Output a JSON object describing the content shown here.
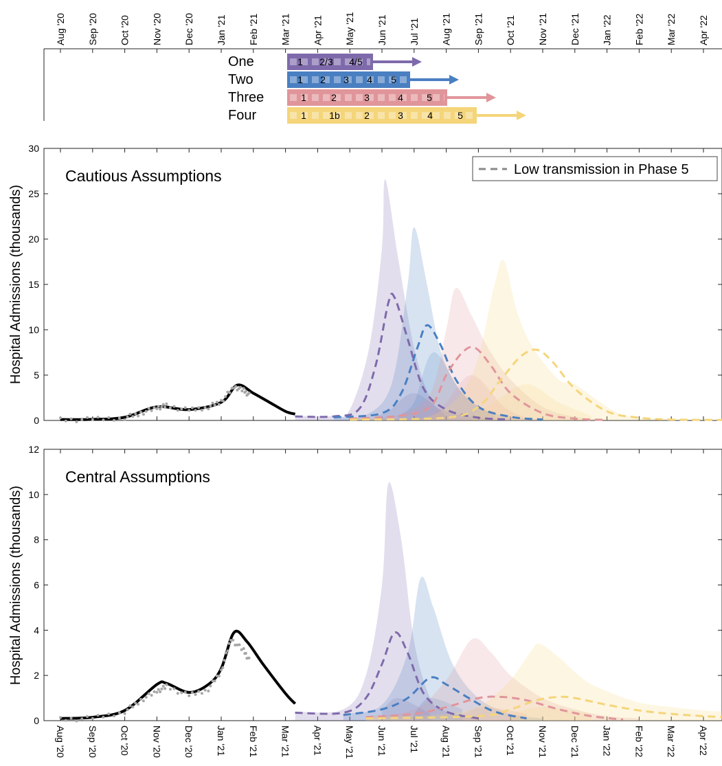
{
  "months": [
    "Aug '20",
    "Sep '20",
    "Oct '20",
    "Nov '20",
    "Dec '20",
    "Jan '21",
    "Feb '21",
    "Mar '21",
    "Apr '21",
    "May '21",
    "Jun '21",
    "Jul '21",
    "Aug '21",
    "Sep '21",
    "Oct '21",
    "Nov '21",
    "Dec '21",
    "Jan '22",
    "Feb '22",
    "Mar '22",
    "Apr '22"
  ],
  "colors": {
    "One": "#7e6aab",
    "Two": "#4a7fc1",
    "Three": "#e0959a",
    "Four": "#f5d57a",
    "data": "#000000",
    "observed": "#a6a6a6"
  },
  "roadmap": {
    "scenarios": [
      {
        "name": "One",
        "steps": [
          "1",
          "2/3",
          "4/5"
        ]
      },
      {
        "name": "Two",
        "steps": [
          "1",
          "2",
          "3",
          "4",
          "5"
        ]
      },
      {
        "name": "Three",
        "steps": [
          "1",
          "2",
          "3",
          "4",
          "5"
        ]
      },
      {
        "name": "Four",
        "steps": [
          "1",
          "1b",
          "2",
          "3",
          "4",
          "5"
        ]
      }
    ]
  },
  "chart_data": [
    {
      "type": "area",
      "title": "Cautious Assumptions",
      "ylabel": "Hospital Admissions (thousands)",
      "ylim": [
        0,
        30
      ],
      "yticks": [
        0,
        5,
        10,
        15,
        20,
        25,
        30
      ],
      "legend": {
        "label": "Low transmission in Phase 5",
        "position": "top-right"
      },
      "x_unit": "month index from Aug '20",
      "fitted": [
        [
          0,
          0.1
        ],
        [
          1,
          0.12
        ],
        [
          2,
          0.35
        ],
        [
          3,
          1.5
        ],
        [
          4,
          1.2
        ],
        [
          5,
          2.0
        ],
        [
          5.5,
          3.9
        ],
        [
          6,
          3.0
        ],
        [
          6.5,
          2.0
        ],
        [
          7,
          1.0
        ],
        [
          7.3,
          0.7
        ]
      ],
      "observed": [
        [
          0,
          0.05
        ],
        [
          1,
          0.1
        ],
        [
          2,
          0.3
        ],
        [
          2.5,
          0.8
        ],
        [
          3,
          1.4
        ],
        [
          3.3,
          1.6
        ],
        [
          4,
          1.1
        ],
        [
          4.6,
          1.5
        ],
        [
          5,
          2.1
        ],
        [
          5.4,
          3.7
        ],
        [
          5.7,
          3.3
        ],
        [
          5.9,
          2.7
        ]
      ],
      "scenarios": [
        {
          "name": "One",
          "upper": [
            [
              7.3,
              0.5
            ],
            [
              8.5,
              0.5
            ],
            [
              9,
              1.2
            ],
            [
              9.6,
              8
            ],
            [
              10,
              19
            ],
            [
              10.1,
              26.6
            ],
            [
              10.5,
              18
            ],
            [
              11,
              8
            ],
            [
              11.5,
              2.5
            ],
            [
              12,
              1
            ],
            [
              13,
              0.3
            ],
            [
              14,
              0.1
            ]
          ],
          "central": [
            [
              7.3,
              0.45
            ],
            [
              8.5,
              0.45
            ],
            [
              9.3,
              1.3
            ],
            [
              9.8,
              6
            ],
            [
              10.2,
              13
            ],
            [
              10.4,
              13.5
            ],
            [
              10.8,
              9
            ],
            [
              11.3,
              3.5
            ],
            [
              12,
              1.2
            ],
            [
              13,
              0.3
            ],
            [
              14,
              0.1
            ]
          ],
          "lower": [
            [
              9.8,
              0.5
            ],
            [
              10.2,
              1
            ],
            [
              11,
              3
            ],
            [
              12,
              0.5
            ]
          ]
        },
        {
          "name": "Two",
          "upper": [
            [
              8.5,
              0.4
            ],
            [
              9.5,
              0.6
            ],
            [
              10.3,
              4
            ],
            [
              10.8,
              15
            ],
            [
              11,
              21.3
            ],
            [
              11.4,
              15
            ],
            [
              11.8,
              8
            ],
            [
              12.3,
              4
            ],
            [
              13,
              1.5
            ],
            [
              14,
              0.4
            ],
            [
              15,
              0.1
            ]
          ],
          "central": [
            [
              8.5,
              0.35
            ],
            [
              10,
              0.8
            ],
            [
              10.6,
              3
            ],
            [
              11.1,
              8
            ],
            [
              11.4,
              10.5
            ],
            [
              11.8,
              8.5
            ],
            [
              12.3,
              4.5
            ],
            [
              13,
              1.5
            ],
            [
              14,
              0.4
            ],
            [
              15,
              0.1
            ]
          ],
          "lower": [
            [
              10.5,
              0.5
            ],
            [
              11,
              2
            ],
            [
              11.6,
              7.5
            ],
            [
              12.5,
              3
            ],
            [
              13.5,
              0.5
            ]
          ]
        },
        {
          "name": "Three",
          "upper": [
            [
              9,
              0.3
            ],
            [
              10.5,
              0.6
            ],
            [
              11.5,
              3
            ],
            [
              12,
              10
            ],
            [
              12.3,
              14.6
            ],
            [
              12.8,
              11.5
            ],
            [
              13.3,
              8
            ],
            [
              14,
              4.5
            ],
            [
              15,
              1.5
            ],
            [
              16,
              0.4
            ],
            [
              17,
              0.1
            ]
          ],
          "central": [
            [
              9,
              0.2
            ],
            [
              10.5,
              0.5
            ],
            [
              11.5,
              1.5
            ],
            [
              12,
              5
            ],
            [
              12.5,
              7.5
            ],
            [
              12.9,
              8
            ],
            [
              13.4,
              6
            ],
            [
              14,
              3
            ],
            [
              15,
              0.8
            ],
            [
              16,
              0.2
            ],
            [
              17,
              0.05
            ]
          ],
          "lower": [
            [
              11.5,
              0.5
            ],
            [
              12,
              2
            ],
            [
              12.8,
              5
            ],
            [
              13.8,
              1.5
            ],
            [
              14.5,
              0.3
            ]
          ]
        },
        {
          "name": "Four",
          "upper": [
            [
              9,
              0.2
            ],
            [
              11.5,
              0.5
            ],
            [
              12.8,
              5
            ],
            [
              13.5,
              15
            ],
            [
              13.8,
              17.6
            ],
            [
              14.2,
              12
            ],
            [
              14.7,
              8
            ],
            [
              15.5,
              4.5
            ],
            [
              16,
              4
            ],
            [
              16.8,
              2
            ],
            [
              17.5,
              0.6
            ],
            [
              18.5,
              0.2
            ],
            [
              20.7,
              0.1
            ]
          ],
          "central": [
            [
              9,
              0.1
            ],
            [
              12,
              0.3
            ],
            [
              13,
              1.5
            ],
            [
              13.7,
              4.5
            ],
            [
              14.3,
              7
            ],
            [
              14.8,
              7.8
            ],
            [
              15.3,
              6.5
            ],
            [
              16,
              3.5
            ],
            [
              17,
              1
            ],
            [
              18,
              0.3
            ],
            [
              19,
              0.1
            ],
            [
              20.7,
              0.05
            ]
          ],
          "lower": [
            [
              12.8,
              0.5
            ],
            [
              13.5,
              2
            ],
            [
              14.5,
              4
            ],
            [
              15.5,
              2
            ],
            [
              16.5,
              0.5
            ]
          ]
        }
      ]
    },
    {
      "type": "area",
      "title": "Central Assumptions",
      "ylabel": "Hospital Admissions (thousands)",
      "ylim": [
        0,
        12
      ],
      "yticks": [
        0,
        2,
        4,
        6,
        8,
        10,
        12
      ],
      "x_unit": "month index from Aug '20",
      "fitted": [
        [
          0,
          0.1
        ],
        [
          1,
          0.15
        ],
        [
          2,
          0.45
        ],
        [
          3,
          1.6
        ],
        [
          3.3,
          1.65
        ],
        [
          4,
          1.25
        ],
        [
          4.6,
          1.6
        ],
        [
          5,
          2.3
        ],
        [
          5.4,
          3.9
        ],
        [
          5.8,
          3.5
        ],
        [
          6.3,
          2.5
        ],
        [
          7,
          1.2
        ],
        [
          7.3,
          0.75
        ]
      ],
      "observed": [
        [
          0,
          0.05
        ],
        [
          1,
          0.1
        ],
        [
          2,
          0.4
        ],
        [
          2.5,
          0.9
        ],
        [
          3,
          1.3
        ],
        [
          3.3,
          1.5
        ],
        [
          4,
          1.1
        ],
        [
          4.6,
          1.4
        ],
        [
          5,
          2.2
        ],
        [
          5.3,
          3.6
        ],
        [
          5.7,
          3.1
        ],
        [
          5.9,
          2.6
        ]
      ],
      "scenarios": [
        {
          "name": "One",
          "upper": [
            [
              7.3,
              0.4
            ],
            [
              8.8,
              0.5
            ],
            [
              9.5,
              2
            ],
            [
              10,
              6
            ],
            [
              10.2,
              10.5
            ],
            [
              10.6,
              8
            ],
            [
              11,
              3.5
            ],
            [
              11.5,
              1
            ],
            [
              12,
              0.4
            ],
            [
              13,
              0.1
            ]
          ],
          "central": [
            [
              7.3,
              0.35
            ],
            [
              8.8,
              0.35
            ],
            [
              9.5,
              1
            ],
            [
              10,
              2.5
            ],
            [
              10.4,
              3.9
            ],
            [
              10.8,
              3
            ],
            [
              11.3,
              1.2
            ],
            [
              12,
              0.4
            ],
            [
              13,
              0.1
            ]
          ],
          "lower": [
            [
              10,
              0.4
            ],
            [
              10.5,
              1
            ],
            [
              11.5,
              0.3
            ]
          ]
        },
        {
          "name": "Two",
          "upper": [
            [
              8.8,
              0.3
            ],
            [
              10,
              0.7
            ],
            [
              10.8,
              3
            ],
            [
              11.2,
              6.3
            ],
            [
              11.6,
              5
            ],
            [
              12.2,
              2.5
            ],
            [
              13,
              1
            ],
            [
              14,
              0.3
            ],
            [
              15,
              0.1
            ]
          ],
          "central": [
            [
              8.8,
              0.25
            ],
            [
              10,
              0.5
            ],
            [
              10.8,
              1
            ],
            [
              11.5,
              1.9
            ],
            [
              12,
              1.6
            ],
            [
              12.7,
              1
            ],
            [
              13.5,
              0.4
            ],
            [
              14.5,
              0.1
            ]
          ],
          "lower": [
            [
              11,
              0.3
            ],
            [
              11.5,
              1
            ],
            [
              12.5,
              0.5
            ]
          ]
        },
        {
          "name": "Three",
          "upper": [
            [
              9.5,
              0.2
            ],
            [
              11,
              0.5
            ],
            [
              12,
              1.8
            ],
            [
              12.8,
              3.6
            ],
            [
              13.4,
              3
            ],
            [
              14,
              2
            ],
            [
              15,
              1
            ],
            [
              16,
              0.5
            ],
            [
              17,
              0.2
            ],
            [
              18,
              0.1
            ]
          ],
          "central": [
            [
              9.5,
              0.15
            ],
            [
              11,
              0.3
            ],
            [
              12,
              0.6
            ],
            [
              13,
              1
            ],
            [
              13.7,
              1.05
            ],
            [
              14.5,
              0.9
            ],
            [
              15.5,
              0.5
            ],
            [
              16.5,
              0.2
            ],
            [
              17.5,
              0.05
            ]
          ],
          "lower": [
            [
              12.5,
              0.3
            ],
            [
              13.2,
              0.6
            ],
            [
              14.5,
              0.3
            ]
          ]
        },
        {
          "name": "Four",
          "upper": [
            [
              9.5,
              0.15
            ],
            [
              12.5,
              0.4
            ],
            [
              13.8,
              1.5
            ],
            [
              14.6,
              3
            ],
            [
              14.9,
              3.4
            ],
            [
              15.5,
              2.8
            ],
            [
              16.3,
              1.8
            ],
            [
              17,
              1.3
            ],
            [
              18,
              0.8
            ],
            [
              19,
              0.6
            ],
            [
              20,
              0.45
            ],
            [
              20.7,
              0.4
            ]
          ],
          "central": [
            [
              9.5,
              0.1
            ],
            [
              13,
              0.2
            ],
            [
              14,
              0.5
            ],
            [
              14.8,
              0.9
            ],
            [
              15.5,
              1.05
            ],
            [
              16,
              1.0
            ],
            [
              17,
              0.7
            ],
            [
              18,
              0.45
            ],
            [
              19,
              0.3
            ],
            [
              20,
              0.2
            ],
            [
              20.7,
              0.15
            ]
          ],
          "lower": [
            [
              14,
              0.3
            ],
            [
              15,
              0.6
            ],
            [
              16.5,
              0.3
            ]
          ]
        }
      ]
    }
  ]
}
